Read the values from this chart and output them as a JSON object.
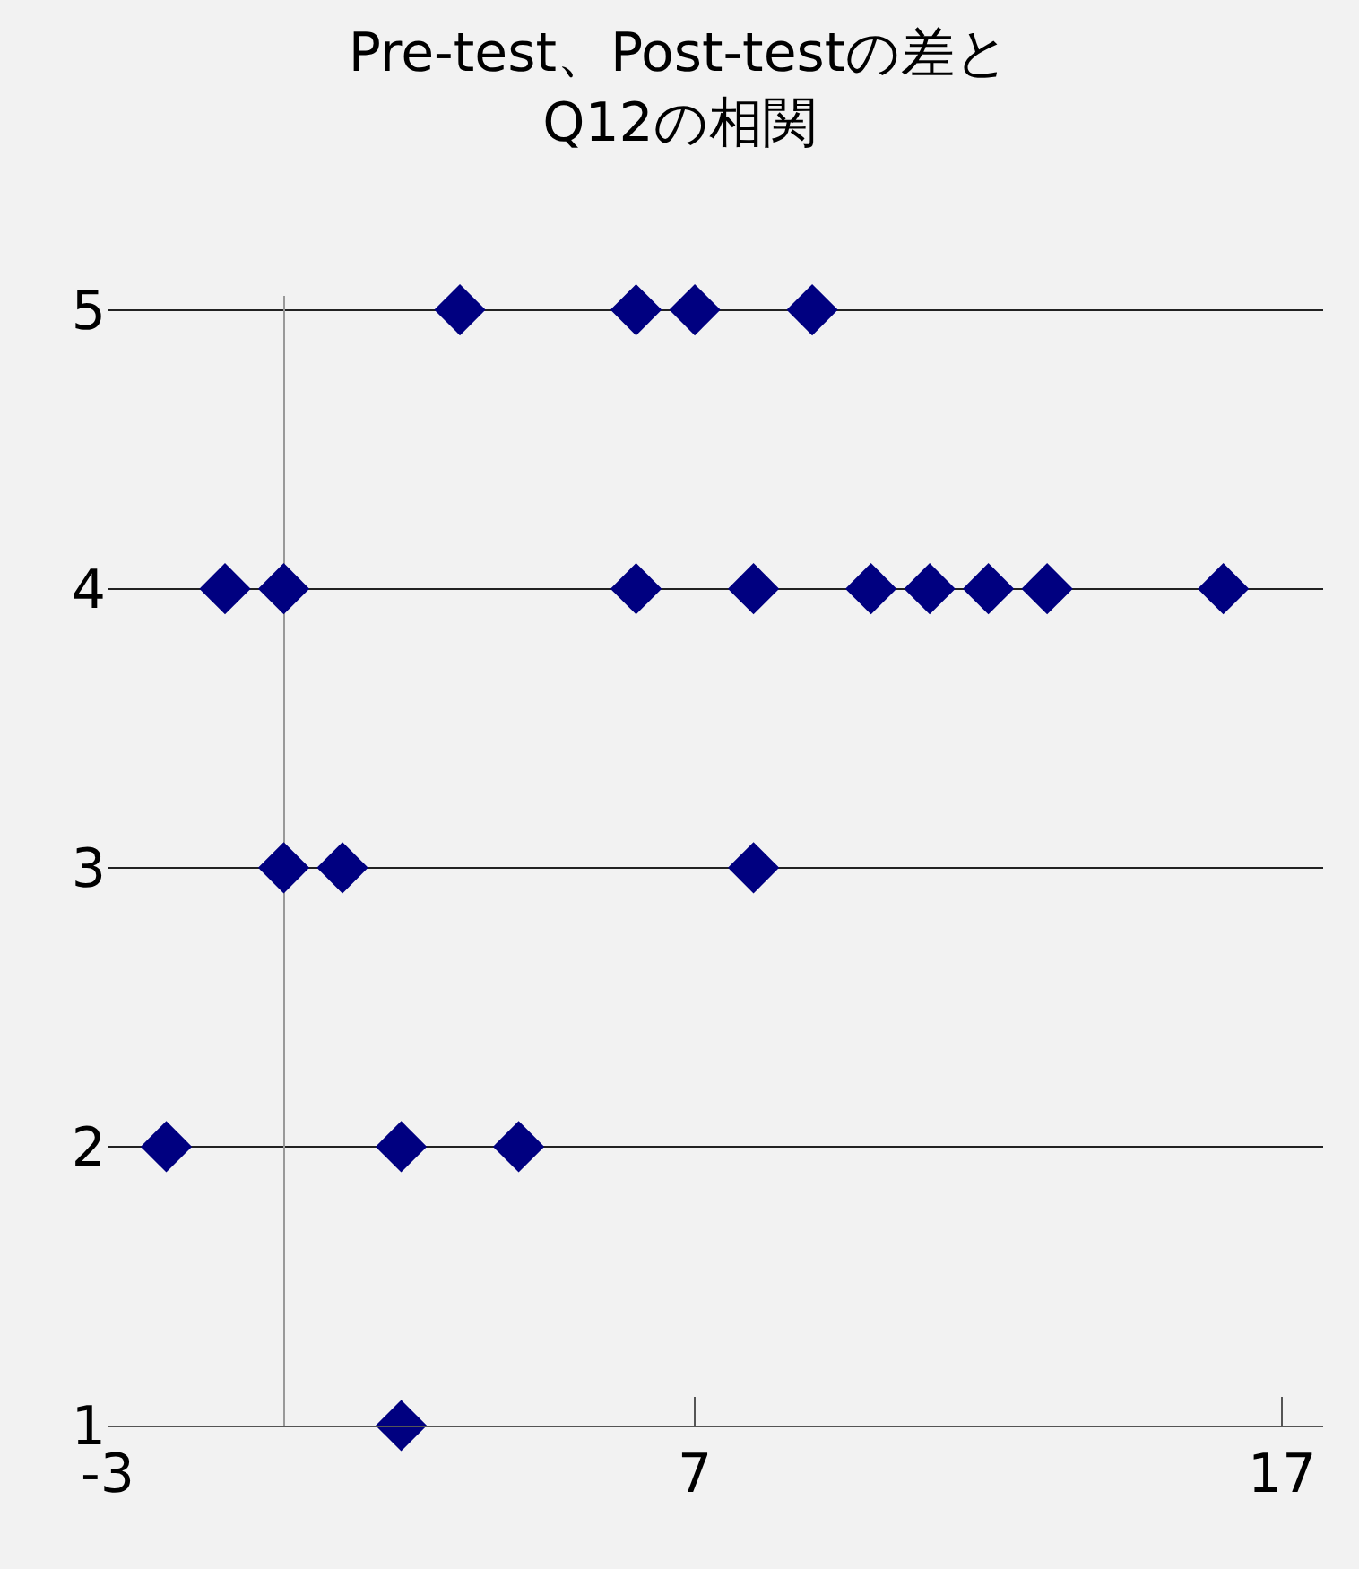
{
  "chart_data": {
    "type": "scatter",
    "title": "Pre-test、Post-testの差と\nQ12の相関",
    "series": [
      {
        "color": "#000080",
        "x": [
          3,
          6,
          7,
          9,
          -1,
          0,
          6,
          8,
          10,
          11,
          12,
          13,
          16,
          0,
          1,
          8,
          -2,
          2,
          4,
          2
        ],
        "values": [
          5,
          5,
          5,
          5,
          4,
          4,
          4,
          4,
          4,
          4,
          4,
          4,
          4,
          3,
          3,
          3,
          2,
          2,
          2,
          1
        ]
      }
    ],
    "marker": "diamond",
    "xlim": [
      -3,
      17.7
    ],
    "xticks": [
      -3,
      7,
      17
    ],
    "ylim": [
      1,
      5.05
    ],
    "yticks": [
      1,
      2,
      3,
      4,
      5
    ],
    "grid": "y",
    "legend": false
  }
}
